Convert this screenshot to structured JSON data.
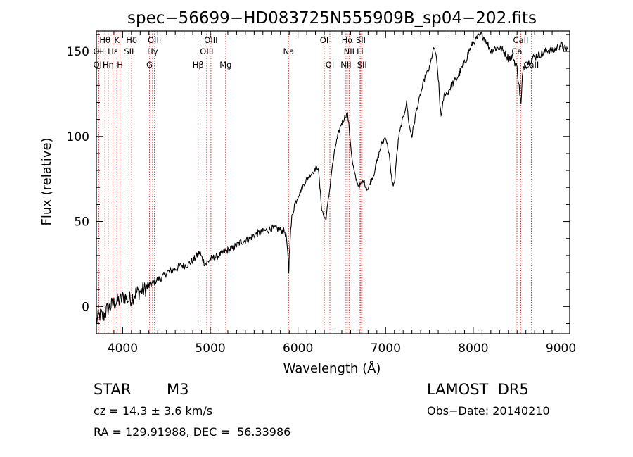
{
  "chart_data": {
    "type": "line",
    "title": "spec−56699−HD083725N555909B_sp04−202.fits",
    "xlabel": "Wavelength (Å)",
    "ylabel": "Flux (relative)",
    "xlim": [
      3700,
      9100
    ],
    "ylim": [
      -16,
      162
    ],
    "xticks": [
      4000,
      5000,
      6000,
      7000,
      8000,
      9000
    ],
    "yticks": [
      0,
      50,
      100,
      150
    ],
    "xtick_labels": [
      "4000",
      "5000",
      "6000",
      "7000",
      "8000",
      "9000"
    ],
    "ytick_labels": [
      "0",
      "50",
      "100",
      "150"
    ],
    "grid": false,
    "series": [
      {
        "color": "#000000",
        "x": [
          3700,
          3740,
          3780,
          3820,
          3860,
          3900,
          3940,
          3980,
          4020,
          4060,
          4100,
          4150,
          4200,
          4250,
          4300,
          4350,
          4400,
          4450,
          4500,
          4550,
          4600,
          4650,
          4700,
          4750,
          4800,
          4850,
          4880,
          4900,
          4930,
          4950,
          5000,
          5050,
          5100,
          5150,
          5200,
          5250,
          5300,
          5350,
          5400,
          5450,
          5500,
          5550,
          5600,
          5650,
          5700,
          5750,
          5800,
          5850,
          5870,
          5890,
          5895,
          5900,
          5910,
          5930,
          5960,
          6000,
          6050,
          6100,
          6150,
          6200,
          6230,
          6250,
          6270,
          6300,
          6320,
          6340,
          6360,
          6380,
          6400,
          6430,
          6460,
          6490,
          6520,
          6540,
          6555,
          6565,
          6580,
          6600,
          6620,
          6650,
          6680,
          6700,
          6720,
          6750,
          6780,
          6800,
          6830,
          6860,
          6900,
          6950,
          7000,
          7040,
          7060,
          7080,
          7100,
          7120,
          7150,
          7200,
          7240,
          7270,
          7300,
          7350,
          7400,
          7450,
          7500,
          7540,
          7560,
          7580,
          7600,
          7620,
          7640,
          7660,
          7680,
          7700,
          7750,
          7800,
          7850,
          7900,
          7950,
          8000,
          8050,
          8100,
          8150,
          8200,
          8250,
          8300,
          8350,
          8400,
          8450,
          8500,
          8530,
          8545,
          8560,
          8580,
          8620,
          8660,
          8700,
          8750,
          8800,
          8850,
          8900,
          8950,
          9000,
          9050,
          9080
        ],
        "y": [
          -8,
          -5,
          -6,
          -2,
          0,
          2,
          3,
          4,
          6,
          4,
          5,
          8,
          9,
          10,
          12,
          14,
          16,
          17,
          20,
          21,
          22,
          24,
          24,
          25,
          27,
          30,
          32,
          29,
          26,
          25,
          28,
          29,
          30,
          32,
          33,
          34,
          36,
          38,
          39,
          40,
          42,
          43,
          44,
          45,
          46,
          46,
          45,
          44,
          40,
          25,
          20,
          30,
          40,
          52,
          60,
          65,
          70,
          75,
          78,
          81,
          82,
          70,
          58,
          52,
          52,
          60,
          68,
          78,
          85,
          95,
          101,
          107,
          110,
          112,
          113,
          113,
          107,
          96,
          85,
          77,
          72,
          71,
          72,
          74,
          70,
          69,
          74,
          77,
          85,
          95,
          100,
          90,
          78,
          72,
          72,
          85,
          100,
          111,
          120,
          106,
          100,
          115,
          125,
          135,
          140,
          150,
          152,
          145,
          135,
          118,
          112,
          122,
          126,
          125,
          130,
          133,
          138,
          143,
          150,
          155,
          158,
          160,
          156,
          150,
          152,
          152,
          150,
          146,
          147,
          140,
          126,
          118,
          135,
          141,
          143,
          145,
          147,
          148,
          149,
          151,
          150,
          152,
          154,
          151,
          152
        ]
      }
    ],
    "line_ids": [
      {
        "name": "Hθ",
        "wave": 3798,
        "row": 1
      },
      {
        "name": "K",
        "wave": 3934,
        "row": 1
      },
      {
        "name": "Hδ",
        "wave": 4102,
        "row": 1
      },
      {
        "name": "OIII",
        "wave": 4363,
        "row": 1
      },
      {
        "name": "OIII",
        "wave": 5007,
        "row": 1
      },
      {
        "name": "OI",
        "wave": 6300,
        "row": 1
      },
      {
        "name": "Hα",
        "wave": 6563,
        "row": 1
      },
      {
        "name": "SII",
        "wave": 6717,
        "row": 1
      },
      {
        "name": "CaII",
        "wave": 8542,
        "row": 1
      },
      {
        "name": "OII",
        "wave": 3727,
        "row": 2
      },
      {
        "name": "Hε",
        "wave": 3889,
        "row": 2
      },
      {
        "name": "SII",
        "wave": 4072,
        "row": 2
      },
      {
        "name": "Hγ",
        "wave": 4341,
        "row": 2
      },
      {
        "name": "OIII",
        "wave": 4959,
        "row": 2
      },
      {
        "name": "Na",
        "wave": 5893,
        "row": 2
      },
      {
        "name": "NII",
        "wave": 6583,
        "row": 2
      },
      {
        "name": "Li",
        "wave": 6708,
        "row": 2
      },
      {
        "name": "Ca",
        "wave": 8498,
        "row": 2
      },
      {
        "name": "OII",
        "wave": 3727,
        "row": 3
      },
      {
        "name": "Hη",
        "wave": 3835,
        "row": 3
      },
      {
        "name": "H",
        "wave": 3969,
        "row": 3
      },
      {
        "name": "G",
        "wave": 4305,
        "row": 3
      },
      {
        "name": "Hβ",
        "wave": 4861,
        "row": 3
      },
      {
        "name": "Mg",
        "wave": 5175,
        "row": 3
      },
      {
        "name": "OI",
        "wave": 6364,
        "row": 3
      },
      {
        "name": "NII",
        "wave": 6548,
        "row": 3
      },
      {
        "name": "SII",
        "wave": 6731,
        "row": 3
      },
      {
        "name": "CaII",
        "wave": 8662,
        "row": 3
      }
    ],
    "marker_lines": [
      3727,
      3798,
      3835,
      3889,
      3934,
      3969,
      4072,
      4102,
      4305,
      4341,
      4363,
      4861,
      4959,
      5007,
      5175,
      5893,
      6300,
      6364,
      6548,
      6563,
      6583,
      6708,
      6717,
      6731,
      8498,
      8542,
      8662
    ],
    "marker_color": "#cc2222"
  },
  "footer": {
    "object_type": "STAR",
    "subclass": "M3",
    "cz": "cz = 14.3 ± 3.6 km/s",
    "coords": "RA = 129.91988, DEC =  56.33986",
    "survey": "LAMOST  DR5",
    "obs_date": "Obs−Date: 20140210"
  }
}
